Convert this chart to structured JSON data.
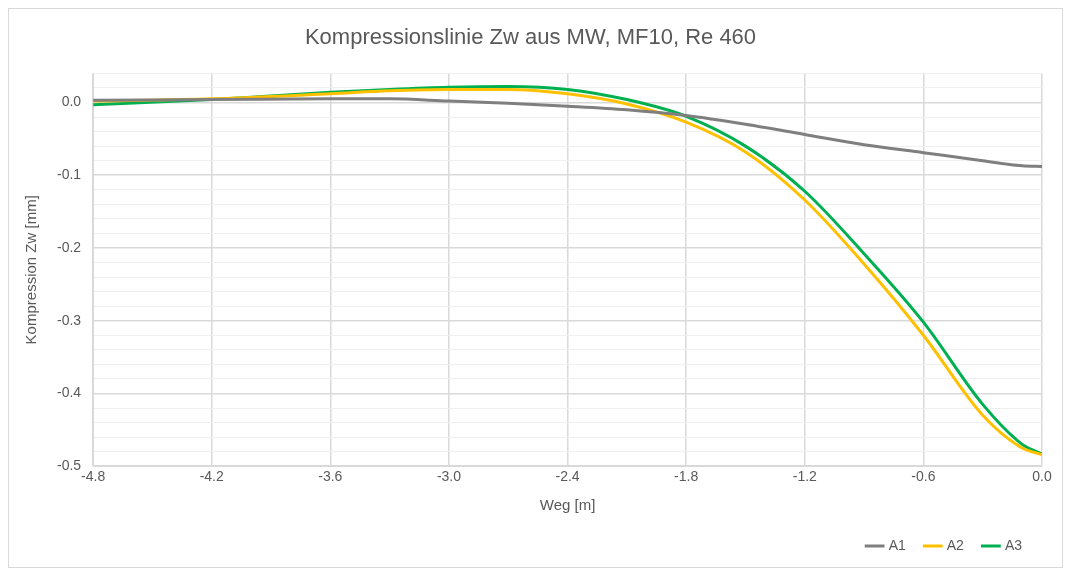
{
  "chart_data": {
    "type": "line",
    "title": "Kompressionslinie Zw aus MW, MF10, Re 460",
    "xlabel": "Weg [m]",
    "ylabel": "Kompression Zw [mm]",
    "x": [
      -4.8,
      -4.2,
      -3.6,
      -3.3,
      -3.0,
      -2.7,
      -2.4,
      -2.1,
      -1.8,
      -1.5,
      -1.2,
      -0.9,
      -0.6,
      -0.3,
      -0.1,
      0.0
    ],
    "series": [
      {
        "name": "A1",
        "color": "#7f7f7f",
        "values": [
          0.003,
          0.004,
          0.005,
          0.005,
          0.002,
          -0.001,
          -0.005,
          -0.01,
          -0.018,
          -0.03,
          -0.044,
          -0.058,
          -0.069,
          -0.08,
          -0.087,
          -0.088
        ]
      },
      {
        "name": "A2",
        "color": "#ffc000",
        "values": [
          0.002,
          0.005,
          0.012,
          0.016,
          0.018,
          0.018,
          0.012,
          -0.002,
          -0.027,
          -0.068,
          -0.134,
          -0.222,
          -0.32,
          -0.43,
          -0.475,
          -0.484
        ]
      },
      {
        "name": "A3",
        "color": "#00b050",
        "values": [
          -0.003,
          0.004,
          0.014,
          0.018,
          0.021,
          0.022,
          0.018,
          0.004,
          -0.019,
          -0.06,
          -0.122,
          -0.208,
          -0.302,
          -0.415,
          -0.47,
          -0.483
        ]
      }
    ],
    "xlim": [
      -4.8,
      0.0
    ],
    "xticks": [
      -4.8,
      -4.2,
      -3.6,
      {
        "value": -3,
        "label": "-3.0"
      },
      -2.4,
      -1.8,
      -1.2,
      -0.6,
      {
        "value": 0,
        "label": "0.0"
      }
    ],
    "ylim": [
      -0.5,
      0.04
    ],
    "yticks": [
      {
        "value": -0.5,
        "label": "-0.5"
      },
      {
        "value": -0.48,
        "label": null
      },
      {
        "value": -0.46,
        "label": null
      },
      {
        "value": -0.44,
        "label": null
      },
      {
        "value": -0.42,
        "label": null
      },
      {
        "value": -0.4,
        "label": "-0.4"
      },
      {
        "value": -0.38,
        "label": null
      },
      {
        "value": -0.36,
        "label": null
      },
      {
        "value": -0.34,
        "label": null
      },
      {
        "value": -0.32,
        "label": null
      },
      {
        "value": -0.3,
        "label": "-0.3"
      },
      {
        "value": -0.28,
        "label": null
      },
      {
        "value": -0.26,
        "label": null
      },
      {
        "value": -0.24,
        "label": null
      },
      {
        "value": -0.22,
        "label": null
      },
      {
        "value": -0.2,
        "label": "-0.2"
      },
      {
        "value": -0.18,
        "label": null
      },
      {
        "value": -0.16,
        "label": null
      },
      {
        "value": -0.14,
        "label": null
      },
      {
        "value": -0.12,
        "label": null
      },
      {
        "value": -0.1,
        "label": "-0.1"
      },
      {
        "value": -0.08,
        "label": null
      },
      {
        "value": -0.06,
        "label": null
      },
      {
        "value": -0.04,
        "label": null
      },
      {
        "value": -0.02,
        "label": null
      },
      {
        "value": 0,
        "label": "0.0"
      },
      {
        "value": 0.02,
        "label": null
      },
      {
        "value": 0.04,
        "label": null
      }
    ],
    "grid": true,
    "legend": "bottom right",
    "marker": "none",
    "line_style": "solid"
  }
}
